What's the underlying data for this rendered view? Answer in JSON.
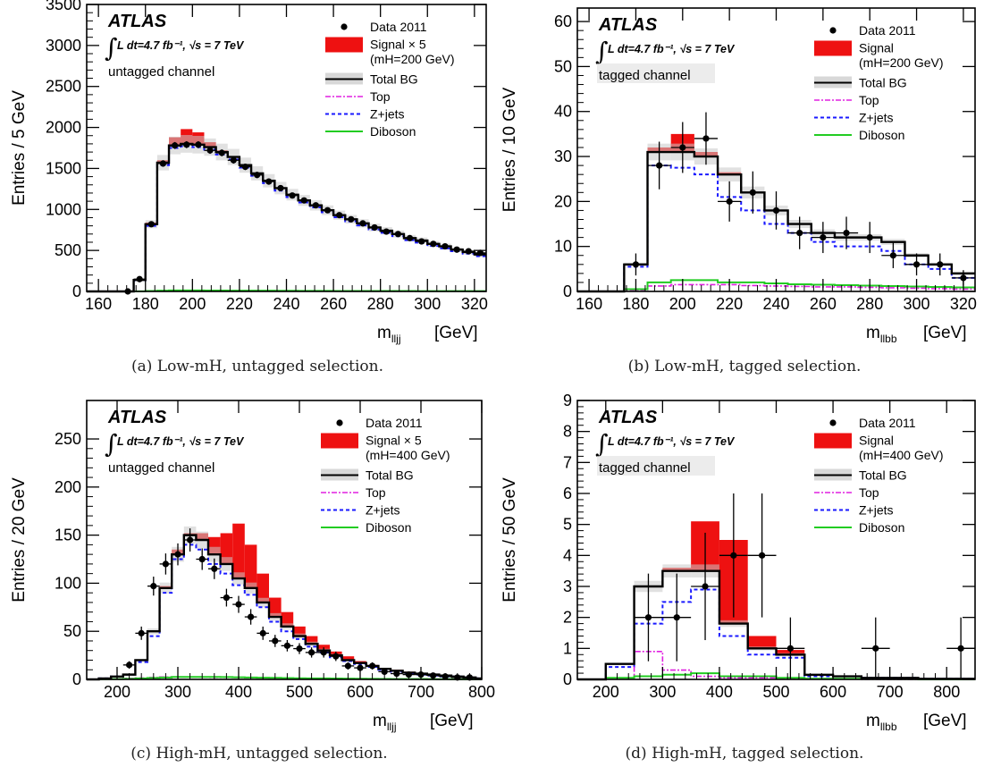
{
  "atlas_label": "ATLAS",
  "lumi_label": "L dt=4.7 fb⁻¹, √s = 7 TeV",
  "colors": {
    "signal": "#ee1111",
    "total_bg": "#000000",
    "band": "#c8c8c8",
    "top": "#e020e0",
    "zjets": "#1a1aff",
    "diboson": "#22cc22",
    "data": "#000000"
  },
  "chart_data": [
    {
      "type": "histogram",
      "caption": "(a) Low-mH, untagged selection.",
      "channel": "untagged channel",
      "ylabel": "Entries / 5 GeV",
      "xvar": "lljj",
      "xunit": "[GeV]",
      "xlim": [
        155,
        325
      ],
      "ylim": [
        0,
        3500
      ],
      "xticks": [
        160,
        180,
        200,
        220,
        240,
        260,
        280,
        300,
        320
      ],
      "yticks": [
        0,
        500,
        1000,
        1500,
        2000,
        2500,
        3000,
        3500
      ],
      "legend": [
        {
          "kind": "data",
          "label": "Data 2011"
        },
        {
          "kind": "signal",
          "label": "Signal × 5",
          "sub": "(mH=200 GeV)"
        },
        {
          "kind": "totalbg",
          "label": "Total BG"
        },
        {
          "kind": "top",
          "label": "Top"
        },
        {
          "kind": "zjets",
          "label": "Z+jets"
        },
        {
          "kind": "diboson",
          "label": "Diboson"
        }
      ],
      "bin_edges": [
        155,
        160,
        165,
        170,
        175,
        180,
        185,
        190,
        195,
        200,
        205,
        210,
        215,
        220,
        225,
        230,
        235,
        240,
        245,
        250,
        255,
        260,
        265,
        270,
        275,
        280,
        285,
        290,
        295,
        300,
        305,
        310,
        315,
        320,
        325
      ],
      "total_bg": [
        0,
        0,
        0,
        0,
        140,
        820,
        1570,
        1780,
        1800,
        1790,
        1760,
        1700,
        1640,
        1540,
        1440,
        1350,
        1260,
        1180,
        1110,
        1050,
        990,
        930,
        880,
        830,
        780,
        740,
        700,
        650,
        620,
        580,
        550,
        510,
        480,
        450
      ],
      "signal_stack": [
        0,
        0,
        0,
        0,
        140,
        840,
        1600,
        1880,
        1980,
        1940,
        1820,
        1720,
        1650,
        1550,
        1450,
        1360,
        1270,
        1190,
        1115,
        1055,
        995,
        935,
        885,
        835,
        785,
        745,
        705,
        655,
        625,
        585,
        555,
        515,
        485,
        455
      ],
      "zjets": [
        0,
        0,
        0,
        0,
        135,
        800,
        1540,
        1750,
        1770,
        1760,
        1730,
        1670,
        1610,
        1510,
        1410,
        1320,
        1230,
        1150,
        1085,
        1025,
        965,
        905,
        855,
        805,
        755,
        715,
        675,
        625,
        595,
        555,
        525,
        490,
        460,
        430
      ],
      "top": [
        0,
        0,
        0,
        0,
        1,
        3,
        5,
        6,
        7,
        7,
        7,
        6,
        6,
        6,
        5,
        5,
        5,
        4,
        4,
        4,
        4,
        3,
        3,
        3,
        3,
        3,
        2,
        2,
        2,
        2,
        2,
        2,
        2,
        2
      ],
      "diboson": [
        0,
        0,
        0,
        0,
        2,
        6,
        10,
        12,
        12,
        12,
        11,
        11,
        10,
        10,
        9,
        9,
        8,
        8,
        7,
        7,
        7,
        6,
        6,
        6,
        5,
        5,
        5,
        5,
        4,
        4,
        4,
        4,
        4,
        4
      ],
      "data": {
        "x": [
          172.5,
          177.5,
          182.5,
          187.5,
          192.5,
          197.5,
          202.5,
          207.5,
          212.5,
          217.5,
          222.5,
          227.5,
          232.5,
          237.5,
          242.5,
          247.5,
          252.5,
          257.5,
          262.5,
          267.5,
          272.5,
          277.5,
          282.5,
          287.5,
          292.5,
          297.5,
          302.5,
          307.5,
          312.5,
          317.5,
          322.5
        ],
        "y": [
          0,
          150,
          820,
          1560,
          1780,
          1790,
          1790,
          1720,
          1690,
          1600,
          1520,
          1420,
          1340,
          1260,
          1170,
          1110,
          1050,
          990,
          930,
          880,
          830,
          780,
          730,
          700,
          650,
          610,
          580,
          550,
          510,
          490,
          470
        ]
      }
    },
    {
      "type": "histogram",
      "caption": "(b) Low-mH, tagged selection.",
      "channel": "tagged channel",
      "ylabel": "Entries / 10 GeV",
      "xvar": "llbb",
      "xunit": "[GeV]",
      "xlim": [
        155,
        325
      ],
      "ylim": [
        0,
        63
      ],
      "xticks": [
        160,
        180,
        200,
        220,
        240,
        260,
        280,
        300,
        320
      ],
      "yticks": [
        0,
        10,
        20,
        30,
        40,
        50,
        60
      ],
      "legend": [
        {
          "kind": "data",
          "label": "Data 2011"
        },
        {
          "kind": "signal",
          "label": "Signal",
          "sub": "(mH=200 GeV)"
        },
        {
          "kind": "totalbg",
          "label": "Total BG"
        },
        {
          "kind": "top",
          "label": "Top"
        },
        {
          "kind": "zjets",
          "label": "Z+jets"
        },
        {
          "kind": "diboson",
          "label": "Diboson"
        }
      ],
      "bin_edges": [
        155,
        165,
        175,
        185,
        195,
        205,
        215,
        225,
        235,
        245,
        255,
        265,
        275,
        285,
        295,
        305,
        315,
        325
      ],
      "total_bg": [
        0,
        0,
        6,
        31,
        31,
        30,
        26,
        22,
        18,
        15,
        13,
        12,
        12,
        11,
        8,
        6,
        4
      ],
      "signal_stack": [
        0,
        0,
        6,
        32,
        35,
        31,
        26.5,
        22,
        18,
        15,
        13,
        12,
        12,
        11,
        8,
        6,
        4
      ],
      "zjets": [
        0,
        0,
        5.5,
        28,
        27.5,
        26,
        21,
        18,
        15,
        13,
        11,
        10,
        10,
        9,
        6,
        5,
        3
      ],
      "top": [
        0,
        0,
        0.3,
        1.2,
        1.5,
        1.5,
        1.5,
        1.3,
        1.2,
        1.1,
        1.0,
        1.0,
        0.9,
        0.8,
        0.7,
        0.6,
        0.5
      ],
      "diboson": [
        0,
        0,
        0.5,
        2,
        2.5,
        2.5,
        2,
        2,
        1.8,
        1.6,
        1.5,
        1.4,
        1.3,
        1.2,
        1.1,
        1.0,
        0.9
      ],
      "data": {
        "x": [
          180,
          190,
          200,
          210,
          220,
          230,
          240,
          250,
          260,
          270,
          280,
          290,
          300,
          310,
          320
        ],
        "y": [
          6,
          28,
          32,
          34,
          20,
          22,
          18,
          13,
          12,
          13,
          12,
          8,
          6,
          6,
          3
        ]
      }
    },
    {
      "type": "histogram",
      "caption": "(c) High-mH, untagged selection.",
      "channel": "untagged channel",
      "ylabel": "Entries / 20 GeV",
      "xvar": "lljj",
      "xunit": "[GeV]",
      "xlim": [
        150,
        800
      ],
      "ylim": [
        0,
        290
      ],
      "xticks": [
        200,
        300,
        400,
        500,
        600,
        700,
        800
      ],
      "yticks": [
        0,
        50,
        100,
        150,
        200,
        250
      ],
      "legend": [
        {
          "kind": "data",
          "label": "Data 2011"
        },
        {
          "kind": "signal",
          "label": "Signal × 5",
          "sub": "(mH=400 GeV)"
        },
        {
          "kind": "totalbg",
          "label": "Total BG"
        },
        {
          "kind": "top",
          "label": "Top"
        },
        {
          "kind": "zjets",
          "label": "Z+jets"
        },
        {
          "kind": "diboson",
          "label": "Diboson"
        }
      ],
      "bin_edges": [
        150,
        170,
        190,
        210,
        230,
        250,
        270,
        290,
        310,
        330,
        350,
        370,
        390,
        410,
        430,
        450,
        470,
        490,
        510,
        530,
        550,
        570,
        590,
        610,
        630,
        650,
        670,
        690,
        710,
        730,
        750,
        770,
        790,
        800
      ],
      "total_bg": [
        0,
        1,
        3,
        5,
        20,
        50,
        95,
        130,
        150,
        145,
        130,
        120,
        105,
        95,
        80,
        65,
        55,
        45,
        37,
        30,
        25,
        20,
        17,
        14,
        11,
        9,
        7,
        6,
        5,
        4,
        3,
        2,
        1
      ],
      "signal_stack": [
        0,
        1,
        3,
        5,
        20,
        50,
        97,
        135,
        152,
        152,
        148,
        152,
        162,
        140,
        110,
        85,
        70,
        55,
        45,
        36,
        29,
        24,
        19,
        15,
        12,
        10,
        8,
        6,
        5,
        4,
        3,
        2,
        1
      ],
      "zjets": [
        0,
        1,
        3,
        5,
        18,
        45,
        90,
        125,
        140,
        135,
        120,
        110,
        98,
        88,
        75,
        60,
        50,
        42,
        34,
        28,
        23,
        19,
        16,
        13,
        10,
        8,
        6,
        5,
        4,
        3,
        3,
        2,
        1
      ],
      "top": [
        0,
        0.2,
        0.5,
        1,
        1.5,
        2,
        2.5,
        2.5,
        2.5,
        2.5,
        2.3,
        2.2,
        2,
        1.8,
        1.6,
        1.4,
        1.2,
        1,
        0.9,
        0.8,
        0.7,
        0.6,
        0.5,
        0.4,
        0.3,
        0.3,
        0.2,
        0.2,
        0.1,
        0.1,
        0.1,
        0.1,
        0.1
      ],
      "diboson": [
        0,
        0.2,
        0.4,
        0.6,
        1,
        1.5,
        2,
        2.5,
        2.6,
        2.6,
        2.5,
        2.4,
        2.2,
        2,
        1.8,
        1.6,
        1.4,
        1.2,
        1.1,
        1,
        0.9,
        0.8,
        0.7,
        0.6,
        0.5,
        0.4,
        0.3,
        0.3,
        0.2,
        0.2,
        0.1,
        0.1,
        0.1
      ],
      "data": {
        "x": [
          220,
          240,
          260,
          280,
          300,
          320,
          340,
          360,
          380,
          400,
          420,
          440,
          460,
          480,
          500,
          520,
          540,
          560,
          580,
          600,
          620,
          640,
          660,
          680,
          700,
          720,
          740,
          760,
          780
        ],
        "y": [
          15,
          48,
          97,
          120,
          130,
          145,
          125,
          115,
          85,
          78,
          65,
          48,
          40,
          35,
          32,
          28,
          28,
          24,
          14,
          12,
          14,
          8,
          6,
          5,
          5,
          4,
          3,
          2,
          2
        ]
      }
    },
    {
      "type": "histogram",
      "caption": "(d) High-mH, tagged selection.",
      "channel": "tagged channel",
      "ylabel": "Entries / 50 GeV",
      "xvar": "llbb",
      "xunit": "[GeV]",
      "xlim": [
        150,
        850
      ],
      "ylim": [
        0,
        9
      ],
      "xticks": [
        200,
        300,
        400,
        500,
        600,
        700,
        800
      ],
      "yticks": [
        0,
        1,
        2,
        3,
        4,
        5,
        6,
        7,
        8,
        9
      ],
      "legend": [
        {
          "kind": "data",
          "label": "Data 2011"
        },
        {
          "kind": "signal",
          "label": "Signal",
          "sub": "(mH=400 GeV)"
        },
        {
          "kind": "totalbg",
          "label": "Total BG"
        },
        {
          "kind": "top",
          "label": "Top"
        },
        {
          "kind": "zjets",
          "label": "Z+jets"
        },
        {
          "kind": "diboson",
          "label": "Diboson"
        }
      ],
      "bin_edges": [
        150,
        200,
        250,
        300,
        350,
        400,
        450,
        500,
        550,
        600,
        650,
        700,
        750,
        800,
        850
      ],
      "total_bg": [
        0,
        0.5,
        3.0,
        3.5,
        3.5,
        1.8,
        1.0,
        0.8,
        0.15,
        0.1,
        0.05,
        0.05,
        0.02,
        0.02
      ],
      "signal_stack": [
        0,
        0.5,
        3.0,
        3.6,
        5.1,
        4.5,
        1.4,
        0.95,
        0.15,
        0.1,
        0.05,
        0.05,
        0.02,
        0.02
      ],
      "zjets": [
        0,
        0.4,
        1.8,
        2.5,
        2.9,
        1.4,
        0.8,
        0.7,
        0.1,
        0.1,
        0.05,
        0.05,
        0.02,
        0.02
      ],
      "top": [
        0,
        0.05,
        0.9,
        0.3,
        0.1,
        0.05,
        0.05,
        0.02,
        0.02,
        0.02,
        0,
        0,
        0,
        0
      ],
      "diboson": [
        0,
        0.05,
        0.1,
        0.15,
        0.2,
        0.1,
        0.1,
        0.05,
        0.02,
        0.02,
        0.01,
        0.01,
        0,
        0
      ],
      "data": {
        "x": [
          275,
          325,
          375,
          425,
          475,
          525,
          675,
          825
        ],
        "y": [
          2,
          2,
          3,
          4,
          4,
          1,
          1,
          1
        ]
      }
    }
  ]
}
